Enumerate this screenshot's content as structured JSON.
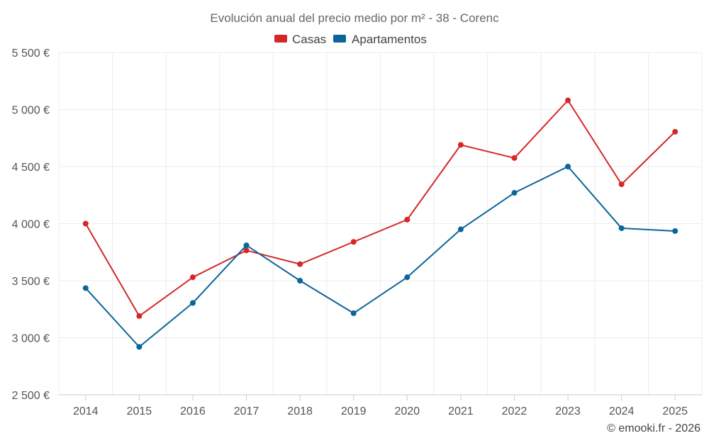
{
  "chart_data": {
    "type": "line",
    "title": "Evolución anual del precio medio por m² - 38 - Corenc",
    "categories": [
      "2014",
      "2015",
      "2016",
      "2017",
      "2018",
      "2019",
      "2020",
      "2021",
      "2022",
      "2023",
      "2024",
      "2025"
    ],
    "series": [
      {
        "name": "Casas",
        "color": "#d62728",
        "values": [
          4000,
          3190,
          3530,
          3765,
          3645,
          3840,
          4035,
          4690,
          4575,
          5080,
          4345,
          4805
        ]
      },
      {
        "name": "Apartamentos",
        "color": "#0b659a",
        "values": [
          3435,
          2920,
          3305,
          3810,
          3500,
          3215,
          3530,
          3950,
          4270,
          4500,
          3960,
          3935
        ]
      }
    ],
    "ylim": [
      2500,
      5500
    ],
    "yticks": [
      2500,
      3000,
      3500,
      4000,
      4500,
      5000,
      5500
    ],
    "ytick_labels": [
      "2 500 €",
      "3 000 €",
      "3 500 €",
      "4 000 €",
      "4 500 €",
      "5 000 €",
      "5 500 €"
    ],
    "xlabel": "",
    "ylabel": "",
    "grid": true,
    "legend_position": "top-center"
  },
  "credit": "© emooki.fr - 2026"
}
